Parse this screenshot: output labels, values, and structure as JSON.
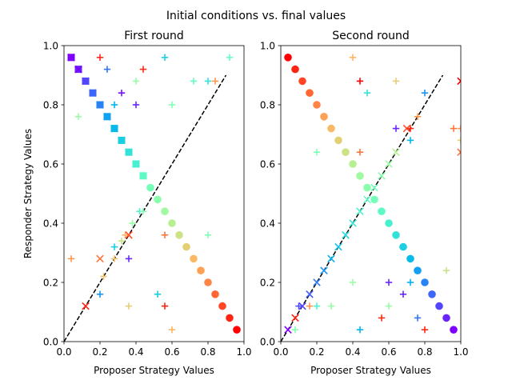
{
  "figure": {
    "suptitle": "Initial conditions vs. final values"
  },
  "chart_data": [
    {
      "type": "scatter",
      "title": "First round",
      "xlabel": "Proposer Strategy Values",
      "ylabel": "Responder Strategy Values",
      "xlim": [
        0,
        1
      ],
      "ylim": [
        0,
        1
      ],
      "xticks": [
        "0.0",
        "0.2",
        "0.4",
        "0.6",
        "0.8",
        "1.0"
      ],
      "yticks": [
        "0.0",
        "0.2",
        "0.4",
        "0.6",
        "0.8",
        "1.0"
      ],
      "grid": false,
      "diagonal_line": {
        "x": [
          0,
          0.9
        ],
        "y": [
          0,
          0.9
        ],
        "style": "dashed",
        "color": "#000000"
      },
      "initial_points": {
        "marker": "circle",
        "colormap": "rainbow",
        "x": [
          0.04,
          0.08,
          0.12,
          0.16,
          0.2,
          0.24,
          0.28,
          0.32,
          0.36,
          0.4,
          0.44,
          0.48,
          0.52,
          0.56,
          0.6,
          0.64,
          0.68,
          0.72,
          0.76,
          0.8,
          0.84,
          0.88,
          0.92,
          0.96
        ],
        "y": [
          0.96,
          0.92,
          0.88,
          0.84,
          0.8,
          0.76,
          0.72,
          0.68,
          0.64,
          0.6,
          0.56,
          0.52,
          0.48,
          0.44,
          0.4,
          0.36,
          0.32,
          0.28,
          0.24,
          0.2,
          0.16,
          0.12,
          0.08,
          0.04
        ]
      },
      "final_points": {
        "markers": [
          "plus",
          "x"
        ],
        "points": [
          {
            "x": 0.04,
            "y": 0.96,
            "c": 0.0,
            "m": "x"
          },
          {
            "x": 0.08,
            "y": 0.92,
            "c": 0.04,
            "m": "x"
          },
          {
            "x": 0.12,
            "y": 0.88,
            "c": 0.09,
            "m": "x"
          },
          {
            "x": 0.16,
            "y": 0.84,
            "c": 0.13,
            "m": "x"
          },
          {
            "x": 0.2,
            "y": 0.8,
            "c": 0.17,
            "m": "x"
          },
          {
            "x": 0.24,
            "y": 0.76,
            "c": 0.22,
            "m": "x"
          },
          {
            "x": 0.28,
            "y": 0.72,
            "c": 0.26,
            "m": "x"
          },
          {
            "x": 0.32,
            "y": 0.68,
            "c": 0.3,
            "m": "x"
          },
          {
            "x": 0.36,
            "y": 0.64,
            "c": 0.35,
            "m": "x"
          },
          {
            "x": 0.4,
            "y": 0.6,
            "c": 0.39,
            "m": "x"
          },
          {
            "x": 0.08,
            "y": 0.92,
            "c": 0.0,
            "m": "x"
          },
          {
            "x": 0.12,
            "y": 0.12,
            "c": 0.96,
            "m": "x"
          },
          {
            "x": 0.2,
            "y": 0.28,
            "c": 0.85,
            "m": "x"
          },
          {
            "x": 0.22,
            "y": 0.22,
            "c": 0.72,
            "m": "plus"
          },
          {
            "x": 0.08,
            "y": 0.76,
            "c": 0.55,
            "m": "plus"
          },
          {
            "x": 0.04,
            "y": 0.28,
            "c": 0.8,
            "m": "plus"
          },
          {
            "x": 0.2,
            "y": 0.16,
            "c": 0.2,
            "m": "plus"
          },
          {
            "x": 0.2,
            "y": 0.96,
            "c": 0.95,
            "m": "plus"
          },
          {
            "x": 0.24,
            "y": 0.92,
            "c": 0.15,
            "m": "plus"
          },
          {
            "x": 0.28,
            "y": 0.8,
            "c": 0.25,
            "m": "plus"
          },
          {
            "x": 0.28,
            "y": 0.28,
            "c": 0.72,
            "m": "plus"
          },
          {
            "x": 0.28,
            "y": 0.32,
            "c": 0.3,
            "m": "plus"
          },
          {
            "x": 0.32,
            "y": 0.84,
            "c": 0.02,
            "m": "plus"
          },
          {
            "x": 0.32,
            "y": 0.34,
            "c": 0.65,
            "m": "plus"
          },
          {
            "x": 0.34,
            "y": 0.36,
            "c": 0.75,
            "m": "plus"
          },
          {
            "x": 0.36,
            "y": 0.36,
            "c": 0.9,
            "m": "x"
          },
          {
            "x": 0.36,
            "y": 0.28,
            "c": 0.05,
            "m": "plus"
          },
          {
            "x": 0.36,
            "y": 0.12,
            "c": 0.7,
            "m": "plus"
          },
          {
            "x": 0.38,
            "y": 0.4,
            "c": 0.55,
            "m": "plus"
          },
          {
            "x": 0.4,
            "y": 0.8,
            "c": 0.05,
            "m": "plus"
          },
          {
            "x": 0.4,
            "y": 0.88,
            "c": 0.55,
            "m": "plus"
          },
          {
            "x": 0.44,
            "y": 0.92,
            "c": 0.95,
            "m": "plus"
          },
          {
            "x": 0.42,
            "y": 0.44,
            "c": 0.4,
            "m": "plus"
          },
          {
            "x": 0.44,
            "y": 0.44,
            "c": 0.5,
            "m": "plus"
          },
          {
            "x": 0.52,
            "y": 0.16,
            "c": 0.3,
            "m": "plus"
          },
          {
            "x": 0.56,
            "y": 0.96,
            "c": 0.3,
            "m": "plus"
          },
          {
            "x": 0.56,
            "y": 0.36,
            "c": 0.85,
            "m": "plus"
          },
          {
            "x": 0.56,
            "y": 0.12,
            "c": 0.96,
            "m": "plus"
          },
          {
            "x": 0.6,
            "y": 0.8,
            "c": 0.5,
            "m": "plus"
          },
          {
            "x": 0.6,
            "y": 0.04,
            "c": 0.75,
            "m": "plus"
          },
          {
            "x": 0.72,
            "y": 0.88,
            "c": 0.45,
            "m": "plus"
          },
          {
            "x": 0.8,
            "y": 0.88,
            "c": 0.35,
            "m": "plus"
          },
          {
            "x": 0.84,
            "y": 0.88,
            "c": 0.8,
            "m": "plus"
          },
          {
            "x": 0.8,
            "y": 0.36,
            "c": 0.5,
            "m": "plus"
          },
          {
            "x": 0.92,
            "y": 0.96,
            "c": 0.45,
            "m": "plus"
          }
        ]
      }
    },
    {
      "type": "scatter",
      "title": "Second round",
      "xlabel": "Proposer Strategy Values",
      "ylabel": "",
      "xlim": [
        0,
        1
      ],
      "ylim": [
        0,
        1
      ],
      "xticks": [
        "0.0",
        "0.2",
        "0.4",
        "0.6",
        "0.8",
        "1.0"
      ],
      "yticks": [
        "0.0",
        "0.2",
        "0.4",
        "0.6",
        "0.8",
        "1.0"
      ],
      "grid": false,
      "diagonal_line": {
        "x": [
          0,
          0.9
        ],
        "y": [
          0,
          0.9
        ],
        "style": "dashed",
        "color": "#000000"
      },
      "initial_points": {
        "marker": "circle",
        "colormap": "rainbow_reversed",
        "x": [
          0.04,
          0.08,
          0.12,
          0.16,
          0.2,
          0.24,
          0.28,
          0.32,
          0.36,
          0.4,
          0.44,
          0.48,
          0.52,
          0.56,
          0.6,
          0.64,
          0.68,
          0.72,
          0.76,
          0.8,
          0.84,
          0.88,
          0.92,
          0.96
        ],
        "y": [
          0.96,
          0.92,
          0.88,
          0.84,
          0.8,
          0.76,
          0.72,
          0.68,
          0.64,
          0.6,
          0.56,
          0.52,
          0.48,
          0.44,
          0.4,
          0.36,
          0.32,
          0.28,
          0.24,
          0.2,
          0.16,
          0.12,
          0.08,
          0.04
        ]
      },
      "final_points": {
        "markers": [
          "plus",
          "x"
        ],
        "points": [
          {
            "x": 0.04,
            "y": 0.04,
            "c": 0.0,
            "m": "x"
          },
          {
            "x": 0.08,
            "y": 0.08,
            "c": 0.96,
            "m": "x"
          },
          {
            "x": 0.12,
            "y": 0.12,
            "c": 0.08,
            "m": "x"
          },
          {
            "x": 0.16,
            "y": 0.16,
            "c": 0.12,
            "m": "x"
          },
          {
            "x": 0.2,
            "y": 0.2,
            "c": 0.16,
            "m": "x"
          },
          {
            "x": 0.24,
            "y": 0.24,
            "c": 0.2,
            "m": "x"
          },
          {
            "x": 0.28,
            "y": 0.28,
            "c": 0.24,
            "m": "x"
          },
          {
            "x": 0.32,
            "y": 0.32,
            "c": 0.28,
            "m": "x"
          },
          {
            "x": 0.36,
            "y": 0.36,
            "c": 0.32,
            "m": "x"
          },
          {
            "x": 0.4,
            "y": 0.4,
            "c": 0.36,
            "m": "x"
          },
          {
            "x": 0.44,
            "y": 0.44,
            "c": 0.4,
            "m": "x"
          },
          {
            "x": 0.48,
            "y": 0.48,
            "c": 0.44,
            "m": "x"
          },
          {
            "x": 0.52,
            "y": 0.52,
            "c": 0.48,
            "m": "x"
          },
          {
            "x": 0.56,
            "y": 0.56,
            "c": 0.52,
            "m": "x"
          },
          {
            "x": 0.6,
            "y": 0.6,
            "c": 0.56,
            "m": "x"
          },
          {
            "x": 0.64,
            "y": 0.64,
            "c": 0.6,
            "m": "x"
          },
          {
            "x": 0.7,
            "y": 0.72,
            "c": 0.9,
            "m": "x"
          },
          {
            "x": 0.76,
            "y": 0.76,
            "c": 0.8,
            "m": "plus"
          },
          {
            "x": 0.08,
            "y": 0.04,
            "c": 0.5,
            "m": "plus"
          },
          {
            "x": 0.1,
            "y": 0.12,
            "c": 0.1,
            "m": "plus"
          },
          {
            "x": 0.16,
            "y": 0.12,
            "c": 0.8,
            "m": "plus"
          },
          {
            "x": 0.2,
            "y": 0.64,
            "c": 0.5,
            "m": "plus"
          },
          {
            "x": 0.2,
            "y": 0.12,
            "c": 0.4,
            "m": "plus"
          },
          {
            "x": 0.28,
            "y": 0.12,
            "c": 0.55,
            "m": "plus"
          },
          {
            "x": 0.4,
            "y": 0.96,
            "c": 0.75,
            "m": "plus"
          },
          {
            "x": 0.4,
            "y": 0.2,
            "c": 0.55,
            "m": "plus"
          },
          {
            "x": 0.44,
            "y": 0.88,
            "c": 1.0,
            "m": "plus"
          },
          {
            "x": 0.44,
            "y": 0.64,
            "c": 0.85,
            "m": "plus"
          },
          {
            "x": 0.44,
            "y": 0.04,
            "c": 0.25,
            "m": "plus"
          },
          {
            "x": 0.48,
            "y": 0.84,
            "c": 0.35,
            "m": "plus"
          },
          {
            "x": 0.56,
            "y": 0.08,
            "c": 0.95,
            "m": "plus"
          },
          {
            "x": 0.6,
            "y": 0.2,
            "c": 0.05,
            "m": "plus"
          },
          {
            "x": 0.6,
            "y": 0.12,
            "c": 0.55,
            "m": "plus"
          },
          {
            "x": 0.64,
            "y": 0.88,
            "c": 0.7,
            "m": "plus"
          },
          {
            "x": 0.64,
            "y": 0.72,
            "c": 0.05,
            "m": "plus"
          },
          {
            "x": 0.68,
            "y": 0.16,
            "c": 0.05,
            "m": "plus"
          },
          {
            "x": 0.72,
            "y": 0.68,
            "c": 0.25,
            "m": "plus"
          },
          {
            "x": 0.72,
            "y": 0.2,
            "c": 0.25,
            "m": "plus"
          },
          {
            "x": 0.72,
            "y": 0.72,
            "c": 0.95,
            "m": "plus"
          },
          {
            "x": 0.76,
            "y": 0.08,
            "c": 0.15,
            "m": "plus"
          },
          {
            "x": 0.8,
            "y": 0.84,
            "c": 0.2,
            "m": "plus"
          },
          {
            "x": 0.8,
            "y": 0.04,
            "c": 0.95,
            "m": "plus"
          },
          {
            "x": 0.92,
            "y": 0.24,
            "c": 0.65,
            "m": "plus"
          },
          {
            "x": 0.96,
            "y": 0.72,
            "c": 0.85,
            "m": "plus"
          },
          {
            "x": 1.0,
            "y": 0.88,
            "c": 1.0,
            "m": "x"
          },
          {
            "x": 1.0,
            "y": 0.72,
            "c": 0.8,
            "m": "plus"
          },
          {
            "x": 1.0,
            "y": 0.68,
            "c": 0.7,
            "m": "plus"
          },
          {
            "x": 1.0,
            "y": 0.64,
            "c": 0.85,
            "m": "x"
          }
        ]
      }
    }
  ]
}
